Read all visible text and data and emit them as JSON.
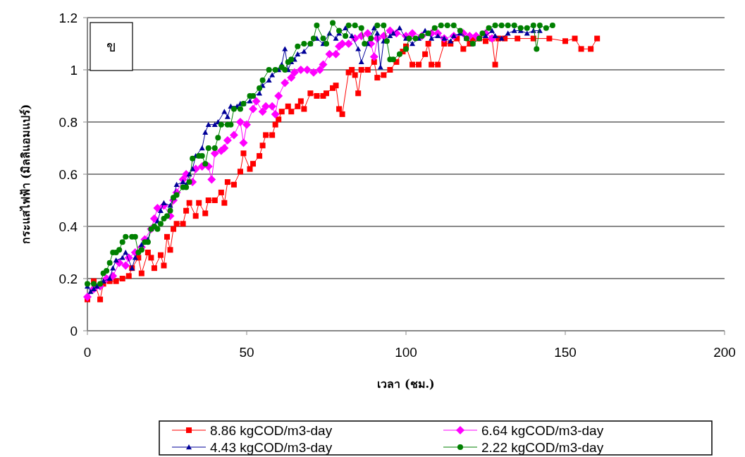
{
  "chart_data": {
    "type": "line",
    "xlabel": "เวลา (ชม.)",
    "ylabel": "กระแสไฟฟ้า  (มิลลิแอมแปร์)",
    "annotations": [
      "ข"
    ],
    "xlim": [
      0,
      200
    ],
    "xticks": [
      0,
      50,
      100,
      150,
      200
    ],
    "ylim": [
      0,
      1.2
    ],
    "yticks": [
      0,
      0.2,
      0.4,
      0.6,
      0.8,
      1,
      1.2
    ],
    "grid": "y",
    "legend": "bottom",
    "line_style": "solid",
    "series": [
      {
        "name": "8.86 kgCOD/m3-day",
        "color": "#ff0000",
        "marker": "square",
        "x": [
          0,
          2,
          4,
          5,
          7,
          9,
          11,
          13,
          14,
          16,
          17,
          19,
          20,
          21,
          23,
          24,
          25,
          26,
          27,
          28,
          30,
          31,
          32,
          34,
          35,
          37,
          38,
          40,
          42,
          43,
          44,
          46,
          48,
          49,
          51,
          52,
          54,
          55,
          56,
          58,
          59,
          60,
          61,
          63,
          64,
          66,
          67,
          68,
          70,
          72,
          74,
          75,
          77,
          78,
          79,
          80,
          82,
          83,
          84,
          85,
          86,
          88,
          90,
          91,
          93,
          95,
          97,
          99,
          100,
          102,
          104,
          106,
          107,
          108,
          110,
          112,
          114,
          116,
          118,
          120,
          121,
          123,
          125,
          127,
          128,
          129,
          131,
          135,
          140,
          145,
          150,
          153,
          155,
          158,
          160
        ],
        "values": [
          0.12,
          0.19,
          0.12,
          0.18,
          0.19,
          0.19,
          0.2,
          0.21,
          0.24,
          0.28,
          0.22,
          0.3,
          0.28,
          0.24,
          0.29,
          0.25,
          0.36,
          0.31,
          0.39,
          0.41,
          0.41,
          0.46,
          0.49,
          0.44,
          0.49,
          0.45,
          0.5,
          0.5,
          0.53,
          0.49,
          0.57,
          0.56,
          0.61,
          0.68,
          0.62,
          0.64,
          0.67,
          0.71,
          0.75,
          0.75,
          0.79,
          0.81,
          0.84,
          0.86,
          0.84,
          0.86,
          0.88,
          0.85,
          0.91,
          0.9,
          0.9,
          0.91,
          0.93,
          0.94,
          0.85,
          0.83,
          0.99,
          1.0,
          0.98,
          0.91,
          1.0,
          1.0,
          1.03,
          0.97,
          0.98,
          1.0,
          1.03,
          1.07,
          1.09,
          1.02,
          1.02,
          1.06,
          1.1,
          1.02,
          1.02,
          1.1,
          1.1,
          1.12,
          1.08,
          1.1,
          1.12,
          1.12,
          1.11,
          1.12,
          1.02,
          1.12,
          1.12,
          1.12,
          1.12,
          1.12,
          1.11,
          1.12,
          1.08,
          1.08,
          1.12
        ]
      },
      {
        "name": "6.64 kgCOD/m3-day",
        "color": "#ff00ff",
        "marker": "diamond",
        "x": [
          0,
          2,
          4,
          6,
          8,
          10,
          12,
          13,
          15,
          17,
          18,
          20,
          21,
          22,
          24,
          26,
          27,
          28,
          30,
          31,
          33,
          34,
          36,
          38,
          39,
          40,
          42,
          43,
          44,
          46,
          48,
          49,
          50,
          52,
          53,
          55,
          56,
          58,
          59,
          60,
          62,
          64,
          65,
          67,
          69,
          71,
          73,
          74,
          76,
          78,
          79,
          80,
          82,
          84,
          86,
          88,
          89,
          90,
          91,
          93,
          95,
          97,
          100,
          102,
          105,
          108,
          110,
          112,
          115,
          118,
          120,
          122,
          125,
          127
        ],
        "values": [
          0.13,
          0.16,
          0.17,
          0.2,
          0.21,
          0.26,
          0.25,
          0.28,
          0.3,
          0.32,
          0.35,
          0.39,
          0.43,
          0.47,
          0.48,
          0.44,
          0.5,
          0.53,
          0.58,
          0.6,
          0.57,
          0.62,
          0.63,
          0.63,
          0.58,
          0.68,
          0.69,
          0.7,
          0.73,
          0.75,
          0.8,
          0.72,
          0.79,
          0.85,
          0.88,
          0.84,
          0.86,
          0.86,
          0.83,
          0.9,
          0.95,
          0.97,
          0.99,
          1.0,
          1.0,
          0.99,
          1.0,
          1.02,
          1.06,
          1.06,
          1.09,
          1.1,
          1.1,
          1.12,
          1.13,
          1.14,
          1.1,
          1.05,
          1.12,
          1.13,
          1.15,
          1.14,
          1.13,
          1.14,
          1.13,
          1.14,
          1.14,
          1.12,
          1.13,
          1.14,
          1.13,
          1.13,
          1.14,
          1.12
        ]
      },
      {
        "name": "4.43 kgCOD/m3-day",
        "color": "#000099",
        "marker": "triangle",
        "x": [
          0,
          1,
          2,
          3,
          5,
          7,
          8,
          9,
          11,
          12,
          14,
          15,
          17,
          19,
          20,
          22,
          23,
          24,
          26,
          27,
          28,
          30,
          31,
          32,
          33,
          34,
          36,
          37,
          38,
          40,
          41,
          43,
          44,
          45,
          47,
          48,
          49,
          51,
          52,
          54,
          55,
          57,
          58,
          60,
          61,
          62,
          63,
          64,
          65,
          66,
          68,
          70,
          72,
          74,
          76,
          78,
          79,
          81,
          83,
          85,
          86,
          88,
          90,
          91,
          92,
          93,
          95,
          96,
          98,
          100,
          102,
          104,
          106,
          107,
          108,
          110,
          112,
          114,
          115,
          117,
          119,
          121,
          123,
          125,
          127,
          128,
          130,
          132,
          134,
          136,
          138,
          140,
          142
        ],
        "values": [
          0.17,
          0.15,
          0.16,
          0.17,
          0.19,
          0.2,
          0.24,
          0.27,
          0.28,
          0.3,
          0.24,
          0.28,
          0.33,
          0.35,
          0.39,
          0.42,
          0.46,
          0.49,
          0.48,
          0.51,
          0.56,
          0.57,
          0.56,
          0.6,
          0.62,
          0.67,
          0.7,
          0.76,
          0.79,
          0.79,
          0.8,
          0.84,
          0.82,
          0.86,
          0.86,
          0.87,
          0.87,
          0.88,
          0.9,
          0.91,
          0.94,
          0.96,
          0.98,
          1.0,
          1.02,
          1.08,
          1.0,
          1.03,
          1.04,
          1.06,
          1.07,
          1.1,
          1.12,
          1.1,
          1.14,
          1.12,
          1.14,
          1.16,
          1.13,
          1.08,
          1.03,
          1.1,
          1.16,
          1.14,
          1.01,
          1.11,
          1.13,
          1.14,
          1.16,
          1.12,
          1.1,
          1.12,
          1.15,
          1.14,
          1.12,
          1.13,
          1.12,
          1.11,
          1.13,
          1.14,
          1.12,
          1.1,
          1.12,
          1.13,
          1.15,
          1.13,
          1.12,
          1.14,
          1.15,
          1.15,
          1.14,
          1.15,
          1.15
        ]
      },
      {
        "name": "2.22 kgCOD/m3-day",
        "color": "#008000",
        "marker": "circle",
        "x": [
          0,
          2,
          4,
          5,
          6,
          7,
          8,
          9,
          10,
          11,
          12,
          14,
          15,
          16,
          17,
          18,
          19,
          20,
          21,
          22,
          23,
          24,
          25,
          26,
          27,
          28,
          30,
          31,
          32,
          33,
          35,
          36,
          37,
          38,
          40,
          41,
          42,
          44,
          45,
          46,
          48,
          49,
          51,
          52,
          54,
          55,
          57,
          59,
          61,
          62,
          63,
          64,
          66,
          68,
          70,
          71,
          72,
          74,
          75,
          77,
          79,
          81,
          82,
          84,
          86,
          87,
          89,
          91,
          93,
          94,
          95,
          96,
          98,
          100,
          101,
          103,
          105,
          107,
          109,
          111,
          113,
          115,
          117,
          119,
          121,
          123,
          124,
          126,
          128,
          130,
          132,
          134,
          136,
          138,
          140,
          141,
          142,
          144,
          146
        ],
        "values": [
          0.18,
          0.18,
          0.18,
          0.22,
          0.23,
          0.26,
          0.3,
          0.3,
          0.31,
          0.34,
          0.36,
          0.36,
          0.36,
          0.3,
          0.31,
          0.34,
          0.34,
          0.39,
          0.4,
          0.39,
          0.41,
          0.43,
          0.44,
          0.46,
          0.51,
          0.52,
          0.55,
          0.55,
          0.57,
          0.66,
          0.67,
          0.67,
          0.64,
          0.7,
          0.7,
          0.74,
          0.79,
          0.79,
          0.79,
          0.85,
          0.85,
          0.87,
          0.9,
          0.9,
          0.93,
          0.96,
          1.0,
          1.0,
          1.01,
          1.0,
          1.03,
          1.04,
          1.09,
          1.1,
          1.1,
          1.12,
          1.17,
          1.12,
          1.1,
          1.18,
          1.15,
          1.13,
          1.17,
          1.17,
          1.16,
          1.1,
          1.12,
          1.17,
          1.17,
          1.11,
          1.04,
          1.04,
          1.06,
          1.08,
          1.12,
          1.12,
          1.13,
          1.14,
          1.16,
          1.17,
          1.17,
          1.17,
          1.15,
          1.12,
          1.1,
          1.12,
          1.14,
          1.16,
          1.17,
          1.17,
          1.17,
          1.17,
          1.16,
          1.16,
          1.17,
          1.08,
          1.17,
          1.16,
          1.17
        ]
      }
    ]
  }
}
